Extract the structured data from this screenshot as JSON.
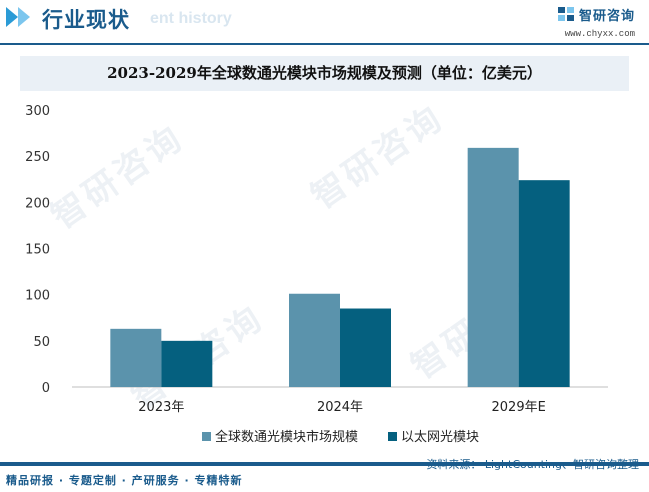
{
  "header": {
    "section_title": "行业现状",
    "ghost_text": "ent history",
    "brand_name": "智研咨询",
    "site": "www.chyxx.com"
  },
  "chart_data": {
    "type": "bar",
    "title": "2023-2029年全球数通光模块市场规模及预测（单位：亿美元）",
    "categories": [
      "2023年",
      "2024年",
      "2029年E"
    ],
    "series": [
      {
        "name": "全球数通光模块市场规模",
        "values": [
          63,
          101,
          259
        ],
        "color": "#5b93ac"
      },
      {
        "name": "以太网光模块",
        "values": [
          50,
          85,
          224
        ],
        "color": "#05607f"
      }
    ],
    "ylim": [
      0,
      300
    ],
    "yticks": [
      0,
      50,
      100,
      150,
      200,
      250,
      300
    ],
    "xlabel": "",
    "ylabel": "",
    "grid": false,
    "legend_position": "bottom"
  },
  "watermark": "智研咨询",
  "footer": {
    "slogan": "精品研报 · 专题定制 · 产研服务 · 专精特新",
    "source": "资料来源： LightCounting、智研咨询整理"
  }
}
